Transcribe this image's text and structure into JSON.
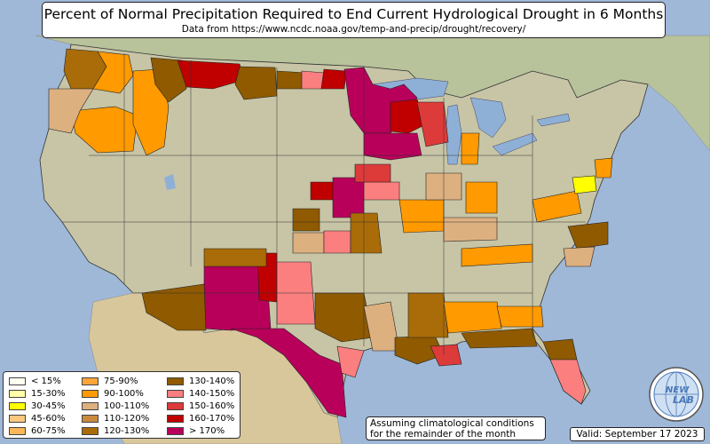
{
  "title": "Percent of Normal Precipitation Required to End Current Hydrological Drought in 6 Months",
  "subtitle": "Data from https://www.ncdc.noaa.gov/temp-and-precip/drought/recovery/",
  "legend": [
    {
      "label": "< 15%",
      "color": "#fffff0"
    },
    {
      "label": "15-30%",
      "color": "#ffffa8"
    },
    {
      "label": "30-45%",
      "color": "#ffff00"
    },
    {
      "label": "45-60%",
      "color": "#fdc87f"
    },
    {
      "label": "60-75%",
      "color": "#fdb75a"
    },
    {
      "label": "75-90%",
      "color": "#ffa53a"
    },
    {
      "label": "90-100%",
      "color": "#ff9a00"
    },
    {
      "label": "100-110%",
      "color": "#ddb080"
    },
    {
      "label": "110-120%",
      "color": "#c98a3e"
    },
    {
      "label": "120-130%",
      "color": "#a96c08"
    },
    {
      "label": "130-140%",
      "color": "#8f5a00"
    },
    {
      "label": "140-150%",
      "color": "#fb7f7f"
    },
    {
      "label": "150-160%",
      "color": "#dd3a3a"
    },
    {
      "label": "160-170%",
      "color": "#c00000"
    },
    {
      "label": "> 170%",
      "color": "#b8005a"
    }
  ],
  "note": {
    "line1": "Assuming climatological conditions",
    "line2": "for the remainder of the month"
  },
  "valid": "Valid: September 17 2023",
  "logo": {
    "text_top": "NEW",
    "text_bottom": "LAB",
    "icon": "globe-logo-icon"
  },
  "colors": {
    "ocean": "#9fb8d8",
    "land": "#c9c6a4",
    "canada": "#b9c39a",
    "mexico": "#d9c89c",
    "lake": "#8fb0d6"
  }
}
